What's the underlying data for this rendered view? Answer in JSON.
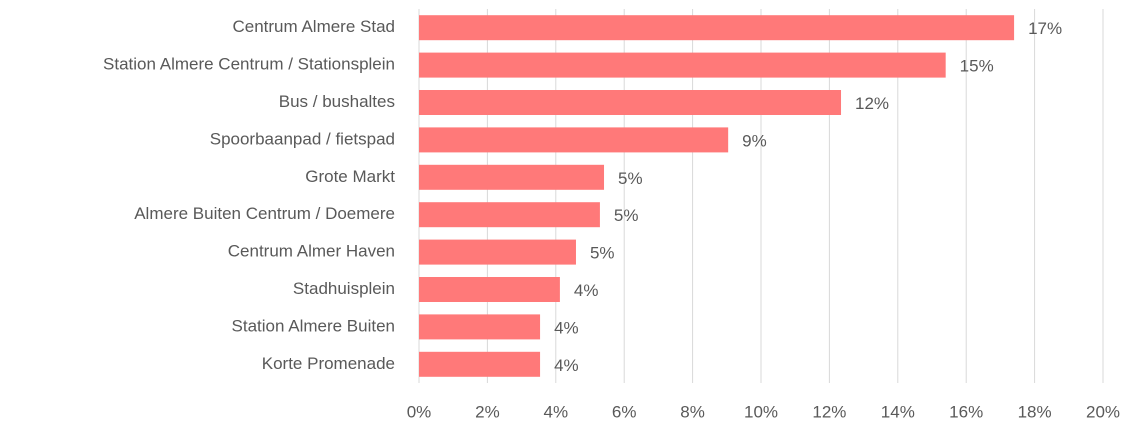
{
  "chart_data": {
    "type": "hbar",
    "categories": [
      "Centrum Almere Stad",
      "Station Almere Centrum / Stationsplein",
      "Bus / bushaltes",
      "Spoorbaanpad / fietspad",
      "Grote Markt",
      "Almere Buiten Centrum / Doemere",
      "Centrum Almer Haven",
      "Stadhuisplein",
      "Station Almere Buiten",
      "Korte Promenade"
    ],
    "values": [
      17.4,
      15.4,
      12.34,
      9.04,
      5.41,
      5.29,
      4.59,
      4.12,
      3.54,
      3.54
    ],
    "value_labels": [
      "17%",
      "15%",
      "12%",
      "9%",
      "5%",
      "5%",
      "5%",
      "4%",
      "4%",
      "4%"
    ],
    "color": "#ff7979",
    "xlim": [
      0,
      20
    ],
    "xticks": [
      {
        "value": 0,
        "label": "0%"
      },
      {
        "value": 2,
        "label": "2%"
      },
      {
        "value": 4,
        "label": "4%"
      },
      {
        "value": 6,
        "label": "6%"
      },
      {
        "value": 8,
        "label": "8%"
      },
      {
        "value": 10,
        "label": "10%"
      },
      {
        "value": 12,
        "label": "12%"
      },
      {
        "value": 14,
        "label": "14%"
      },
      {
        "value": 16,
        "label": "16%"
      },
      {
        "value": 18,
        "label": "18%"
      },
      {
        "value": 20,
        "label": "20%"
      }
    ],
    "grid": true
  }
}
